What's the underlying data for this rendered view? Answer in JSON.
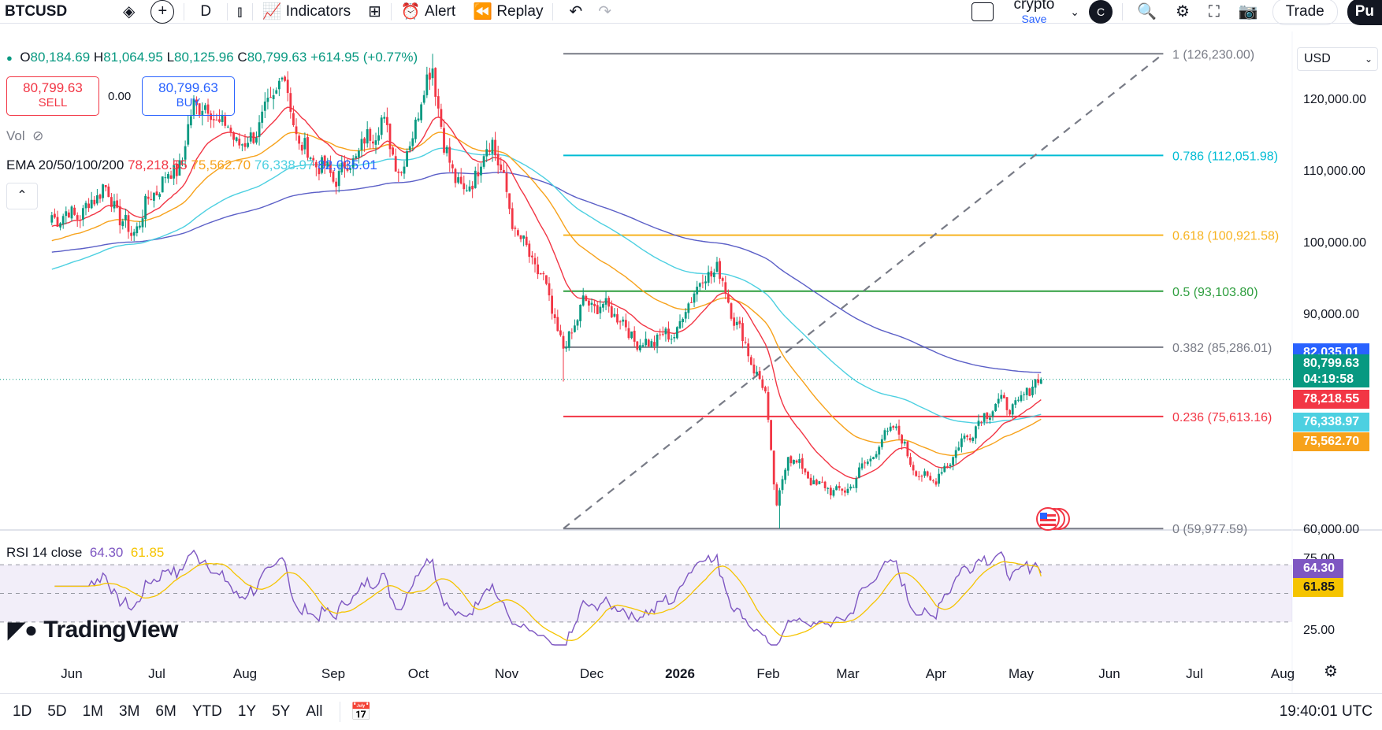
{
  "toolbar": {
    "symbol": "BTCUSD",
    "interval": "D",
    "indicators_label": "Indicators",
    "alert_label": "Alert",
    "replay_label": "Replay",
    "layout_name": "crypto",
    "save_label": "Save",
    "avatar_letter": "C",
    "trade_label": "Trade",
    "publish_label": "Pu"
  },
  "legend": {
    "open_label": "O",
    "open": "80,184.69",
    "high_label": "H",
    "high": "81,064.95",
    "low_label": "L",
    "low": "80,125.96",
    "close_label": "C",
    "close": "80,799.63",
    "change": "+614.95 (+0.77%)",
    "sell_price": "80,799.63",
    "sell_label": "SELL",
    "spread": "0.00",
    "buy_price": "80,799.63",
    "buy_label": "BUY",
    "vol_label": "Vol",
    "ema_label": "EMA 20/50/100/200",
    "ema20": "78,218.55",
    "ema50": "75,562.70",
    "ema100": "76,338.97",
    "ema200": "82,035.01",
    "rsi_label": "RSI 14 close",
    "rsi_value": "64.30",
    "rsi_ma": "61.85"
  },
  "currency": "USD",
  "brand": "TradingView",
  "clock": "19:40:01 UTC",
  "timeframes": [
    "1D",
    "5D",
    "1M",
    "3M",
    "6M",
    "YTD",
    "1Y",
    "5Y",
    "All"
  ],
  "months": [
    "Jun",
    "Jul",
    "Aug",
    "Sep",
    "Oct",
    "Nov",
    "Dec",
    "2026",
    "Feb",
    "Mar",
    "Apr",
    "May",
    "Jun",
    "Jul",
    "Aug"
  ],
  "colors": {
    "up": "#089981",
    "down": "#f23645",
    "ema20": "#f23645",
    "ema50": "#f7a21b",
    "ema100": "#4dd0e1",
    "ema200": "#5b5fc7",
    "rsi": "#7e57c2",
    "rsi_ma": "#f5c400"
  },
  "chart_data": {
    "type": "candlestick",
    "symbol": "BTCUSD",
    "interval": "1D",
    "currency": "USD",
    "y_ticks": [
      "120,000.00",
      "110,000.00",
      "100,000.00",
      "90,000.00",
      "60,000.00"
    ],
    "y_tick_values": [
      120000,
      110000,
      100000,
      90000,
      60000
    ],
    "ylim": [
      57000,
      128000
    ],
    "x_labels": [
      "Jun",
      "Jul",
      "Aug",
      "Sep",
      "Oct",
      "Nov",
      "Dec",
      "2026",
      "Feb",
      "Mar",
      "Apr",
      "May",
      "Jun",
      "Jul",
      "Aug"
    ],
    "close_anchors": [
      [
        "2025-05-25",
        103500
      ],
      [
        "2025-06-05",
        104000
      ],
      [
        "2025-06-12",
        107800
      ],
      [
        "2025-06-22",
        100800
      ],
      [
        "2025-06-30",
        107100
      ],
      [
        "2025-07-10",
        111300
      ],
      [
        "2025-07-14",
        119700
      ],
      [
        "2025-07-20",
        118000
      ],
      [
        "2025-08-01",
        113200
      ],
      [
        "2025-08-10",
        119000
      ],
      [
        "2025-08-14",
        124000
      ],
      [
        "2025-08-20",
        113500
      ],
      [
        "2025-09-01",
        108900
      ],
      [
        "2025-09-06",
        110500
      ],
      [
        "2025-09-18",
        117000
      ],
      [
        "2025-09-25",
        109400
      ],
      [
        "2025-10-01",
        118500
      ],
      [
        "2025-10-06",
        125000
      ],
      [
        "2025-10-10",
        113000
      ],
      [
        "2025-10-17",
        106400
      ],
      [
        "2025-10-27",
        114500
      ],
      [
        "2025-11-04",
        101500
      ],
      [
        "2025-11-14",
        94500
      ],
      [
        "2025-11-21",
        84700
      ],
      [
        "2025-11-28",
        91400
      ],
      [
        "2025-12-08",
        90600
      ],
      [
        "2025-12-18",
        85500
      ],
      [
        "2025-12-31",
        87500
      ],
      [
        "2026-01-06",
        93500
      ],
      [
        "2026-01-14",
        96500
      ],
      [
        "2026-01-20",
        89500
      ],
      [
        "2026-01-31",
        78600
      ],
      [
        "2026-02-04",
        62700
      ],
      [
        "2026-02-08",
        70500
      ],
      [
        "2026-02-18",
        66000
      ],
      [
        "2026-02-28",
        65000
      ],
      [
        "2026-03-10",
        70500
      ],
      [
        "2026-03-17",
        74500
      ],
      [
        "2026-03-26",
        67200
      ],
      [
        "2026-04-01",
        66800
      ],
      [
        "2026-04-10",
        72000
      ],
      [
        "2026-04-22",
        77500
      ],
      [
        "2026-04-30",
        77000
      ],
      [
        "2026-05-05",
        80500
      ],
      [
        "2026-05-08",
        80799.63
      ]
    ],
    "last_candle": {
      "open": 80184.69,
      "high": 81064.95,
      "low": 80125.96,
      "close": 80799.63,
      "change": 614.95,
      "change_pct": 0.77
    },
    "fib_retracement": {
      "start": [
        "2025-11-21",
        59977.59
      ],
      "end": [
        "2026-06-20",
        126230.0
      ],
      "levels": [
        {
          "ratio": "1",
          "price": "126,230.00",
          "value": 126230.0,
          "color": "#787b86"
        },
        {
          "ratio": "0.786",
          "price": "112,051.98",
          "value": 112051.98,
          "color": "#00bcd4"
        },
        {
          "ratio": "0.618",
          "price": "100,921.58",
          "value": 100921.58,
          "color": "#f7b320"
        },
        {
          "ratio": "0.5",
          "price": "93,103.80",
          "value": 93103.8,
          "color": "#2e9e3e"
        },
        {
          "ratio": "0.382",
          "price": "85,286.01",
          "value": 85286.01,
          "color": "#787b86"
        },
        {
          "ratio": "0.236",
          "price": "75,613.16",
          "value": 75613.16,
          "color": "#f23645"
        },
        {
          "ratio": "0",
          "price": "59,977.59",
          "value": 59977.59,
          "color": "#787b86"
        }
      ]
    },
    "price_labels": [
      {
        "name": "ema200",
        "text": "82,035.01",
        "value": 82035.01,
        "color": "#2962ff"
      },
      {
        "name": "last-price",
        "text": "80,799.63",
        "value": 80799.63,
        "color": "#089981",
        "countdown": "04:19:58"
      },
      {
        "name": "ema20",
        "text": "78,218.55",
        "value": 78218.55,
        "color": "#f23645"
      },
      {
        "name": "ema100",
        "text": "76,338.97",
        "value": 76338.97,
        "color": "#4dd0e1"
      },
      {
        "name": "ema50",
        "text": "75,562.70",
        "value": 75562.7,
        "color": "#f7a21b"
      }
    ],
    "series": [
      {
        "name": "EMA 20",
        "period": 20,
        "value": 78218.55
      },
      {
        "name": "EMA 50",
        "period": 50,
        "value": 75562.7
      },
      {
        "name": "EMA 100",
        "period": 100,
        "value": 76338.97
      },
      {
        "name": "EMA 200",
        "period": 200,
        "value": 82035.01
      }
    ],
    "rsi": {
      "period": 14,
      "source": "close",
      "value": 64.3,
      "ma": 61.85,
      "y_ticks": [
        "75.00",
        "25.00"
      ],
      "y_tick_values": [
        75,
        25
      ],
      "ylim": [
        12,
        82
      ]
    }
  }
}
